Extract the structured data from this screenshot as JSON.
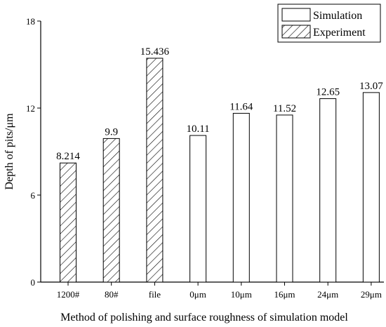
{
  "chart_data": {
    "type": "bar",
    "title": "",
    "xlabel": "Method of polishing and surface roughness of  simulation model",
    "ylabel": "Depth of pits/μm",
    "ylim": [
      0,
      18
    ],
    "yticks": [
      "0",
      "6",
      "12",
      "18"
    ],
    "grid": false,
    "legend_position": "top-right",
    "categories": [
      "1200#",
      "80#",
      "file",
      "0μm",
      "10μm",
      "16μm",
      "24μm",
      "29μm"
    ],
    "series": [
      {
        "name": "Simulation",
        "pattern": "none",
        "values": [
          null,
          null,
          null,
          10.11,
          11.64,
          11.52,
          12.65,
          13.07
        ],
        "labels": [
          null,
          null,
          null,
          "10.11",
          "11.64",
          "11.52",
          "12.65",
          "13.07"
        ]
      },
      {
        "name": "Experiment",
        "pattern": "hatch",
        "values": [
          8.214,
          9.9,
          15.436,
          null,
          null,
          null,
          null,
          null
        ],
        "labels": [
          "8.214",
          "9.9",
          "15.436",
          null,
          null,
          null,
          null,
          null
        ]
      }
    ],
    "colors": {
      "bar_fill": "#ffffff",
      "bar_stroke": "#000000",
      "axis": "#000000"
    }
  }
}
